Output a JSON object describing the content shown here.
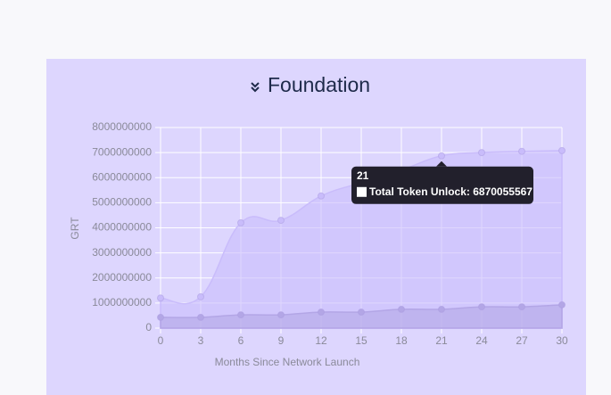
{
  "chart_data": {
    "type": "area",
    "title": "Foundation",
    "x_label": "Months Since Network Launch",
    "y_label": "GRT",
    "x": [
      0,
      3,
      6,
      9,
      12,
      15,
      18,
      21,
      24,
      27,
      30
    ],
    "xlim": [
      0,
      30
    ],
    "xticks": [
      0,
      3,
      6,
      9,
      12,
      15,
      18,
      21,
      24,
      27,
      30
    ],
    "ylim": [
      0,
      8000000000
    ],
    "yticks": [
      0,
      1000000000,
      2000000000,
      3000000000,
      4000000000,
      5000000000,
      6000000000,
      7000000000,
      8000000000
    ],
    "grid": true,
    "series": [
      {
        "name": "Total Token Unlock",
        "color": "#c9bcfb",
        "values": [
          1200000000,
          1250000000,
          4200000000,
          4300000000,
          5270000000,
          5800000000,
          6300000000,
          6870055567,
          7000000000,
          7050000000,
          7080000000
        ]
      },
      {
        "color": "#b3a6e6",
        "values": [
          430000000,
          430000000,
          530000000,
          530000000,
          640000000,
          640000000,
          750000000,
          750000000,
          850000000,
          850000000,
          930000000
        ]
      }
    ],
    "tooltip": {
      "index": 7,
      "label": "Total Token Unlock: 6870055567"
    }
  }
}
